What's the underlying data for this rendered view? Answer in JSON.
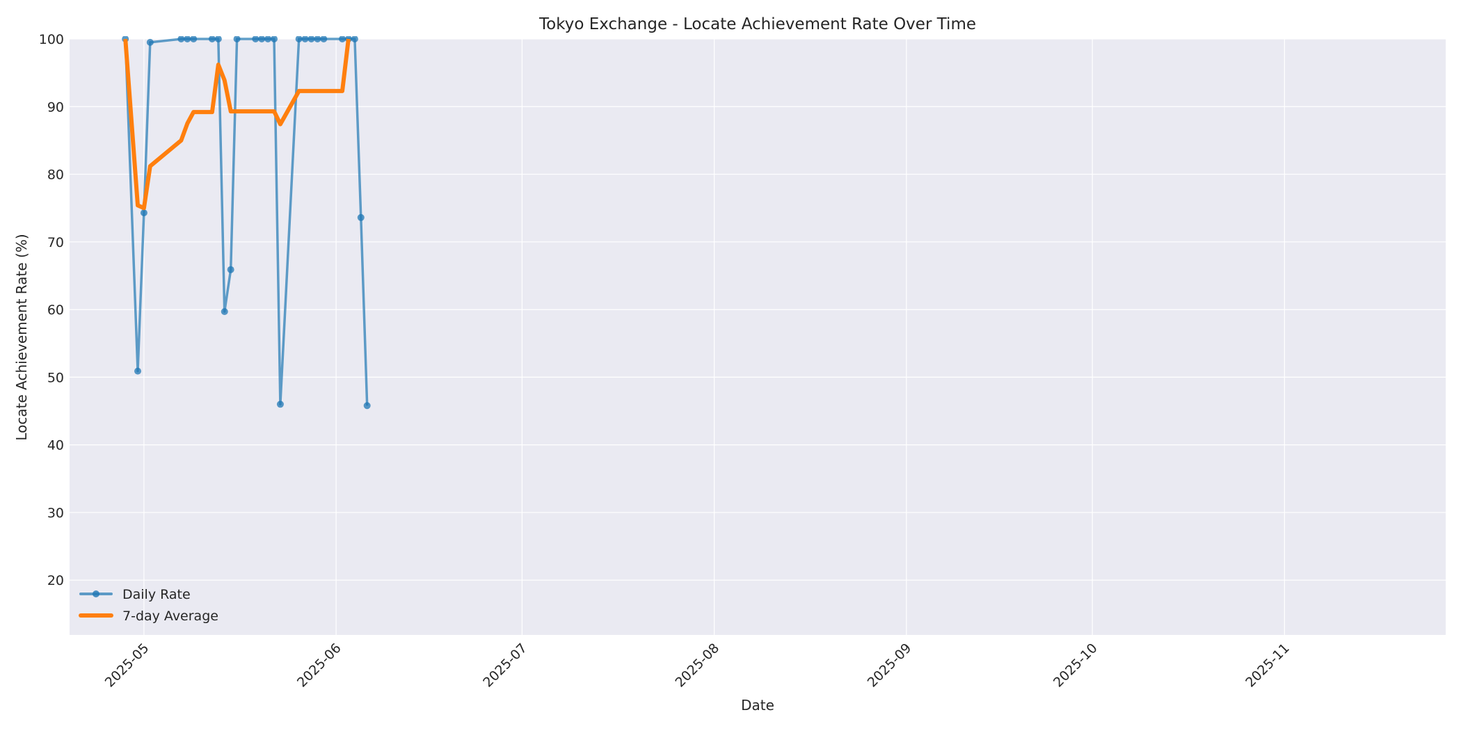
{
  "chart_data": {
    "type": "line",
    "title": "Tokyo Exchange - Locate Achievement Rate Over Time",
    "xlabel": "Date",
    "ylabel": "Locate Achievement Rate (%)",
    "ylim": [
      11.9,
      100
    ],
    "yticks": [
      20,
      30,
      40,
      50,
      60,
      70,
      80,
      90,
      100
    ],
    "xticks": [
      "2025-05",
      "2025-06",
      "2025-07",
      "2025-08",
      "2025-09",
      "2025-10",
      "2025-11"
    ],
    "xlim": [
      "2025-04-19",
      "2025-11-27"
    ],
    "grid": true,
    "legend_position": "lower left",
    "colors": {
      "daily": "#1f77b4",
      "avg": "#ff7f0e",
      "plot_bg": "#eaeaf2",
      "grid": "#ffffff"
    },
    "series": [
      {
        "name": "Daily Rate",
        "style": "line+markers",
        "points": [
          [
            "2025-04-28",
            100
          ],
          [
            "2025-04-30",
            50.9
          ],
          [
            "2025-05-01",
            74.3
          ],
          [
            "2025-05-02",
            99.5
          ],
          [
            "2025-05-07",
            100
          ],
          [
            "2025-05-08",
            100
          ],
          [
            "2025-05-09",
            100
          ],
          [
            "2025-05-12",
            100
          ],
          [
            "2025-05-13",
            100
          ],
          [
            "2025-05-14",
            59.7
          ],
          [
            "2025-05-15",
            65.9
          ],
          [
            "2025-05-16",
            100
          ],
          [
            "2025-05-19",
            100
          ],
          [
            "2025-05-20",
            100
          ],
          [
            "2025-05-21",
            100
          ],
          [
            "2025-05-22",
            100
          ],
          [
            "2025-05-23",
            46.0
          ],
          [
            "2025-05-26",
            100
          ],
          [
            "2025-05-27",
            100
          ],
          [
            "2025-05-28",
            100
          ],
          [
            "2025-05-29",
            100
          ],
          [
            "2025-05-30",
            100
          ],
          [
            "2025-06-02",
            100
          ],
          [
            "2025-06-03",
            100
          ],
          [
            "2025-06-04",
            100
          ],
          [
            "2025-06-05",
            73.6
          ],
          [
            "2025-06-06",
            45.8
          ]
        ]
      },
      {
        "name": "7-day Average",
        "style": "line",
        "points": [
          [
            "2025-04-28",
            100
          ],
          [
            "2025-04-30",
            75.4
          ],
          [
            "2025-05-01",
            75.0
          ],
          [
            "2025-05-02",
            81.2
          ],
          [
            "2025-05-07",
            85.0
          ],
          [
            "2025-05-08",
            87.5
          ],
          [
            "2025-05-09",
            89.2
          ],
          [
            "2025-05-12",
            89.2
          ],
          [
            "2025-05-13",
            96.2
          ],
          [
            "2025-05-14",
            93.9
          ],
          [
            "2025-05-15",
            89.3
          ],
          [
            "2025-05-22",
            89.3
          ],
          [
            "2025-05-23",
            87.4
          ],
          [
            "2025-05-26",
            92.3
          ],
          [
            "2025-06-02",
            92.3
          ],
          [
            "2025-06-03",
            100
          ]
        ]
      }
    ]
  },
  "legend": {
    "items": [
      {
        "label": "Daily Rate"
      },
      {
        "label": "7-day Average"
      }
    ]
  }
}
